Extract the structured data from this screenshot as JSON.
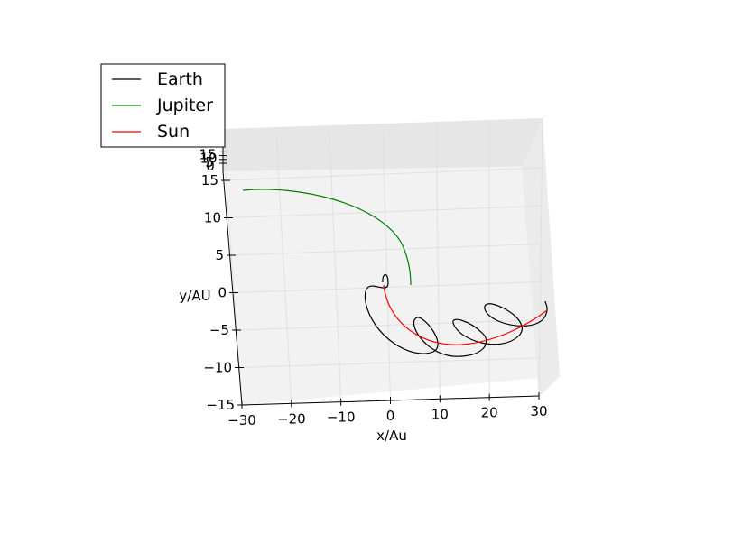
{
  "chart_data": {
    "type": "line",
    "projection": "3d",
    "xlabel": "x/Au",
    "ylabel": "y/AU",
    "zlabel": "",
    "x_ticks": [
      -30,
      -20,
      -10,
      0,
      10,
      20,
      30
    ],
    "y_ticks": [
      -15,
      -10,
      -5,
      0,
      5,
      10,
      15
    ],
    "z_ticks": [
      0,
      5,
      10,
      15
    ],
    "xlim": [
      -30,
      30
    ],
    "ylim": [
      -15,
      15
    ],
    "grid": true,
    "legend_position": "top-left",
    "series": [
      {
        "name": "Earth",
        "color": "#000000"
      },
      {
        "name": "Jupiter",
        "color": "#008000"
      },
      {
        "name": "Sun",
        "color": "#ff0000"
      }
    ]
  }
}
